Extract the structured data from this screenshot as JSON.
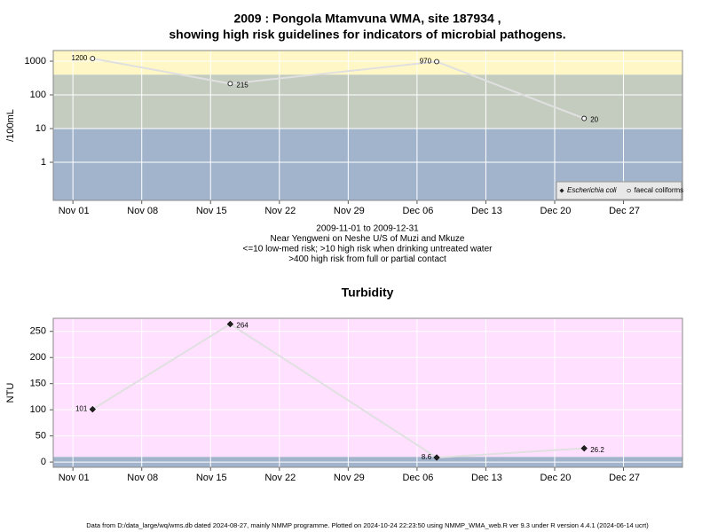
{
  "chart_data": [
    {
      "type": "line",
      "title": [
        "2009 : Pongola Mtamvuna WMA, site 187934 ,",
        "showing high risk guidelines for indicators of microbial pathogens."
      ],
      "ylabel": "/100mL",
      "log_y": true,
      "ylim": [
        0.074,
        2070
      ],
      "yticks": [
        1000,
        100,
        10,
        1
      ],
      "xlim": [
        "Oct 30",
        "Jan 02"
      ],
      "xticks": [
        "Nov 01",
        "Nov 08",
        "Nov 15",
        "Nov 22",
        "Nov 29",
        "Dec 06",
        "Dec 13",
        "Dec 20",
        "Dec 27"
      ],
      "band_edges": [
        10,
        400
      ],
      "band_colors": [
        "#a2b4cc",
        "#c4ccc0",
        "#fff7c6"
      ],
      "grid": true,
      "legend": "bottom-right",
      "notes": [
        "2009-11-01 to 2009-12-31",
        "Near Yengweni on Neshe U/S of Muzi and Mkuze",
        "<=10 low-med risk; >10 high risk when drinking untreated water",
        ">400 high risk from full or partial contact"
      ],
      "series": [
        {
          "name": "Escherichia coli",
          "marker": "diamond-filled",
          "color": "#e0e0e0",
          "x": [
            "Nov 03",
            "Nov 17",
            "Dec 08",
            "Dec 23"
          ],
          "values": [
            null,
            null,
            null,
            null
          ]
        },
        {
          "name": "faecal coliforms",
          "marker": "circle-open",
          "color": "#e0e0e0",
          "x": [
            "Nov 03",
            "Nov 17",
            "Dec 08",
            "Dec 23"
          ],
          "values": [
            1200,
            215,
            970,
            20
          ]
        }
      ]
    },
    {
      "type": "line",
      "title": [
        "Turbidity"
      ],
      "ylabel": "NTU",
      "log_y": false,
      "ylim": [
        -10,
        275
      ],
      "yticks": [
        0,
        50,
        100,
        150,
        200,
        250
      ],
      "xlim": [
        "Oct 30",
        "Jan 02"
      ],
      "xticks": [
        "Nov 01",
        "Nov 08",
        "Nov 15",
        "Nov 22",
        "Nov 29",
        "Dec 06",
        "Dec 13",
        "Dec 20",
        "Dec 27"
      ],
      "band_edges": [
        10
      ],
      "band_colors": [
        "#a2b4cc",
        "#ffe0ff"
      ],
      "grid": true,
      "series": [
        {
          "marker": "diamond-filled",
          "color": "#e0e0e0",
          "x": [
            "Nov 03",
            "Nov 17",
            "Dec 08",
            "Dec 23"
          ],
          "values": [
            101,
            264,
            8.6,
            26.2
          ]
        }
      ]
    }
  ],
  "footer": "Data from D:/data_large/wq/wms.db dated 2024-08-27, mainly NMMP programme. Plotted on 2024-10-24 22:23:50 using NMMP_WMA_web.R ver 9.3 under R version 4.4.1 (2024-06-14 ucrt)"
}
